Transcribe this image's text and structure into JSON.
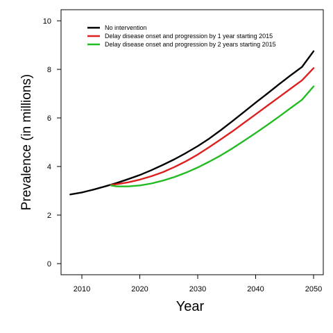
{
  "chart_data": {
    "type": "line",
    "title": "",
    "xlabel": "Year",
    "ylabel": "Prevalence (in millions)",
    "xlim": [
      2008,
      2050
    ],
    "ylim": [
      0,
      10
    ],
    "xticks": [
      2010,
      2020,
      2030,
      2040,
      2050
    ],
    "yticks": [
      0,
      2,
      4,
      6,
      8,
      10
    ],
    "grid": false,
    "legend_position": "top-left",
    "series": [
      {
        "name": "No intervention",
        "color": "#000000",
        "x": [
          2008,
          2010,
          2012,
          2014,
          2016,
          2018,
          2020,
          2022,
          2024,
          2026,
          2028,
          2030,
          2032,
          2034,
          2036,
          2038,
          2040,
          2042,
          2044,
          2046,
          2048,
          2050
        ],
        "y": [
          2.85,
          2.93,
          3.05,
          3.18,
          3.32,
          3.48,
          3.65,
          3.85,
          4.07,
          4.3,
          4.56,
          4.84,
          5.15,
          5.5,
          5.87,
          6.25,
          6.63,
          7.0,
          7.38,
          7.75,
          8.1,
          8.75
        ]
      },
      {
        "name": "Delay disease onset and progression by 1 year starting 2015",
        "color": "#dd1f1f",
        "x": [
          2015,
          2016,
          2018,
          2020,
          2022,
          2024,
          2026,
          2028,
          2030,
          2032,
          2034,
          2036,
          2038,
          2040,
          2042,
          2044,
          2046,
          2048,
          2050
        ],
        "y": [
          3.25,
          3.27,
          3.35,
          3.46,
          3.6,
          3.77,
          3.98,
          4.22,
          4.49,
          4.8,
          5.12,
          5.45,
          5.8,
          6.15,
          6.5,
          6.85,
          7.2,
          7.55,
          8.05
        ]
      },
      {
        "name": "Delay disease onset and progression by 2 years starting 2015",
        "color": "#22bb22",
        "x": [
          2015,
          2016,
          2018,
          2020,
          2022,
          2024,
          2026,
          2028,
          2030,
          2032,
          2034,
          2036,
          2038,
          2040,
          2042,
          2044,
          2046,
          2048,
          2050
        ],
        "y": [
          3.22,
          3.18,
          3.18,
          3.22,
          3.3,
          3.42,
          3.57,
          3.75,
          3.96,
          4.2,
          4.46,
          4.75,
          5.06,
          5.38,
          5.71,
          6.05,
          6.4,
          6.75,
          7.3
        ]
      }
    ]
  }
}
